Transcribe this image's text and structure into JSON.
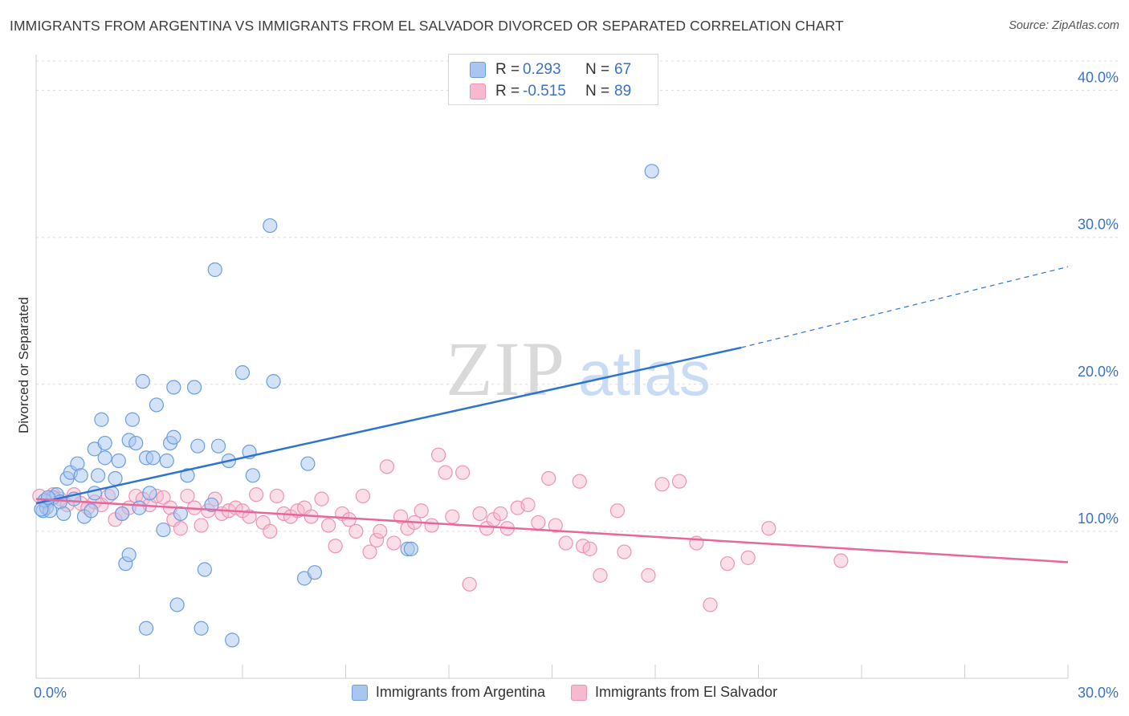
{
  "header": {
    "title": "IMMIGRANTS FROM ARGENTINA VS IMMIGRANTS FROM EL SALVADOR DIVORCED OR SEPARATED CORRELATION CHART",
    "source": "Source: ZipAtlas.com"
  },
  "legend": {
    "rows": [
      {
        "r_label": "R =",
        "r_value": "0.293",
        "n_label": "N =",
        "n_value": "67"
      },
      {
        "r_label": "R =",
        "r_value": "-0.515",
        "n_label": "N =",
        "n_value": "89"
      }
    ]
  },
  "bottom_legend": {
    "argentina": "Immigrants from Argentina",
    "el_salvador": "Immigrants from El Salvador"
  },
  "axes": {
    "ylabel": "Divorced or Separated",
    "x_min_label": "0.0%",
    "x_max_label": "30.0%",
    "y_ticks": [
      "10.0%",
      "20.0%",
      "30.0%",
      "40.0%"
    ]
  },
  "colors": {
    "argentina_fill": "#a9c6f0",
    "argentina_stroke": "#6b9de0",
    "argentina_line": "#2f73d0",
    "el_salvador_fill": "#f6b9cd",
    "el_salvador_stroke": "#ef93b2",
    "el_salvador_line": "#e8679a",
    "axis_text": "#3a72c8",
    "grid": "#dcdcdc"
  },
  "chart_data": {
    "type": "scatter",
    "title": "IMMIGRANTS FROM ARGENTINA VS IMMIGRANTS FROM EL SALVADOR DIVORCED OR SEPARATED CORRELATION CHART",
    "xlabel": "",
    "ylabel": "Divorced or Separated",
    "xlim": [
      0,
      30
    ],
    "ylim": [
      0,
      42
    ],
    "y_ticks": [
      10,
      20,
      30,
      40
    ],
    "grid": true,
    "series": [
      {
        "name": "Immigrants from Argentina",
        "R": 0.293,
        "N": 67,
        "trend": {
          "x0": 0,
          "y0": 11.9,
          "x1": 20.5,
          "y1": 22.5,
          "dash_to_x": 30,
          "dash_to_y": 28.0
        },
        "points": [
          [
            0.2,
            11.4
          ],
          [
            0.3,
            11.6
          ],
          [
            0.4,
            11.4
          ],
          [
            0.5,
            12.3
          ],
          [
            0.6,
            12.5
          ],
          [
            0.7,
            12.0
          ],
          [
            0.8,
            11.2
          ],
          [
            0.9,
            13.6
          ],
          [
            1.0,
            14.0
          ],
          [
            1.1,
            12.2
          ],
          [
            1.2,
            14.6
          ],
          [
            1.3,
            13.8
          ],
          [
            1.4,
            11.0
          ],
          [
            1.6,
            11.4
          ],
          [
            1.7,
            12.6
          ],
          [
            1.7,
            15.6
          ],
          [
            1.8,
            13.8
          ],
          [
            1.9,
            17.6
          ],
          [
            2.0,
            16.0
          ],
          [
            2.0,
            15.0
          ],
          [
            2.2,
            12.6
          ],
          [
            2.3,
            13.6
          ],
          [
            2.4,
            14.8
          ],
          [
            2.5,
            11.2
          ],
          [
            2.6,
            7.8
          ],
          [
            2.7,
            16.2
          ],
          [
            2.7,
            8.4
          ],
          [
            2.8,
            17.6
          ],
          [
            2.9,
            16.0
          ],
          [
            3.0,
            11.6
          ],
          [
            3.1,
            20.2
          ],
          [
            3.2,
            15.0
          ],
          [
            3.2,
            3.4
          ],
          [
            3.3,
            12.6
          ],
          [
            3.4,
            15.0
          ],
          [
            3.5,
            18.6
          ],
          [
            3.7,
            10.1
          ],
          [
            3.8,
            14.8
          ],
          [
            3.9,
            16.0
          ],
          [
            4.0,
            16.4
          ],
          [
            4.0,
            19.8
          ],
          [
            4.1,
            5.0
          ],
          [
            4.2,
            11.2
          ],
          [
            4.4,
            13.8
          ],
          [
            4.6,
            19.8
          ],
          [
            4.7,
            15.8
          ],
          [
            4.8,
            3.4
          ],
          [
            4.9,
            7.4
          ],
          [
            5.1,
            11.8
          ],
          [
            5.2,
            27.8
          ],
          [
            5.3,
            15.8
          ],
          [
            5.6,
            14.8
          ],
          [
            5.7,
            2.6
          ],
          [
            6.0,
            20.8
          ],
          [
            6.2,
            15.4
          ],
          [
            6.3,
            13.8
          ],
          [
            6.8,
            30.8
          ],
          [
            6.9,
            20.2
          ],
          [
            7.8,
            6.8
          ],
          [
            7.9,
            14.6
          ],
          [
            8.1,
            7.2
          ],
          [
            10.8,
            8.8
          ],
          [
            10.9,
            8.8
          ],
          [
            17.9,
            34.5
          ],
          [
            0.25,
            12.1
          ],
          [
            0.35,
            12.3
          ],
          [
            0.15,
            11.5
          ]
        ]
      },
      {
        "name": "Immigrants from El Salvador",
        "R": -0.515,
        "N": 89,
        "trend": {
          "x0": 0,
          "y0": 12.2,
          "x1": 30,
          "y1": 7.9
        },
        "points": [
          [
            0.1,
            12.4
          ],
          [
            0.3,
            12.0
          ],
          [
            0.5,
            12.5
          ],
          [
            0.7,
            12.2
          ],
          [
            0.9,
            11.8
          ],
          [
            1.1,
            12.5
          ],
          [
            1.3,
            11.9
          ],
          [
            1.5,
            11.6
          ],
          [
            1.7,
            12.0
          ],
          [
            1.9,
            11.8
          ],
          [
            2.1,
            12.4
          ],
          [
            2.3,
            10.8
          ],
          [
            2.5,
            11.2
          ],
          [
            2.7,
            11.6
          ],
          [
            2.9,
            12.4
          ],
          [
            3.1,
            12.2
          ],
          [
            3.3,
            11.8
          ],
          [
            3.5,
            12.4
          ],
          [
            3.7,
            12.3
          ],
          [
            3.9,
            11.6
          ],
          [
            4.0,
            10.8
          ],
          [
            4.2,
            10.2
          ],
          [
            4.4,
            12.4
          ],
          [
            4.6,
            11.6
          ],
          [
            4.8,
            10.4
          ],
          [
            5.0,
            11.4
          ],
          [
            5.2,
            12.2
          ],
          [
            5.4,
            11.2
          ],
          [
            5.6,
            11.4
          ],
          [
            5.8,
            11.6
          ],
          [
            6.0,
            11.4
          ],
          [
            6.2,
            11.0
          ],
          [
            6.4,
            12.5
          ],
          [
            6.6,
            10.6
          ],
          [
            6.8,
            10.0
          ],
          [
            7.0,
            12.4
          ],
          [
            7.2,
            11.2
          ],
          [
            7.4,
            11.0
          ],
          [
            7.6,
            11.4
          ],
          [
            7.8,
            11.6
          ],
          [
            8.0,
            11.0
          ],
          [
            8.3,
            12.2
          ],
          [
            8.5,
            10.4
          ],
          [
            8.7,
            9.0
          ],
          [
            8.9,
            11.2
          ],
          [
            9.1,
            10.8
          ],
          [
            9.3,
            10.0
          ],
          [
            9.5,
            12.4
          ],
          [
            9.7,
            8.6
          ],
          [
            9.9,
            9.4
          ],
          [
            10.0,
            10.0
          ],
          [
            10.2,
            14.4
          ],
          [
            10.4,
            9.2
          ],
          [
            10.6,
            11.0
          ],
          [
            10.8,
            10.2
          ],
          [
            11.0,
            10.6
          ],
          [
            11.2,
            11.4
          ],
          [
            11.5,
            10.4
          ],
          [
            11.7,
            15.2
          ],
          [
            11.9,
            14.0
          ],
          [
            12.1,
            11.0
          ],
          [
            12.4,
            14.0
          ],
          [
            12.6,
            6.4
          ],
          [
            12.9,
            11.2
          ],
          [
            13.1,
            10.2
          ],
          [
            13.3,
            10.8
          ],
          [
            13.5,
            11.2
          ],
          [
            13.7,
            10.2
          ],
          [
            14.0,
            11.6
          ],
          [
            14.3,
            11.8
          ],
          [
            14.6,
            10.6
          ],
          [
            14.9,
            13.6
          ],
          [
            15.1,
            10.4
          ],
          [
            15.4,
            9.2
          ],
          [
            15.8,
            13.4
          ],
          [
            15.9,
            9.0
          ],
          [
            16.1,
            8.8
          ],
          [
            16.4,
            7.0
          ],
          [
            16.9,
            11.4
          ],
          [
            17.1,
            8.6
          ],
          [
            17.8,
            7.0
          ],
          [
            18.2,
            13.2
          ],
          [
            18.7,
            13.4
          ],
          [
            19.2,
            9.2
          ],
          [
            19.6,
            5.0
          ],
          [
            20.1,
            7.8
          ],
          [
            20.7,
            8.2
          ],
          [
            21.3,
            10.2
          ],
          [
            23.4,
            8.0
          ]
        ]
      }
    ]
  }
}
